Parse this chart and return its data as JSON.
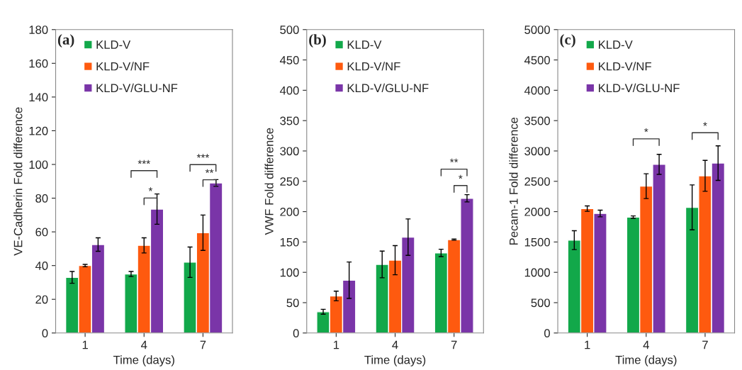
{
  "chart_data": [
    {
      "type": "bar",
      "categories": [
        "1",
        "4",
        "7"
      ],
      "xlabel": "Time (days)",
      "ylabel": "VE-Cadherin Fold difference",
      "ylim": [
        0,
        180
      ],
      "yticks": [
        0,
        20,
        40,
        60,
        80,
        100,
        120,
        140,
        160,
        180
      ],
      "grid": false,
      "legend": "top left",
      "series": [
        {
          "name": "KLD-V",
          "color": "#12a84a",
          "values": [
            33,
            35,
            42
          ],
          "errors": [
            3.5,
            1.5,
            9
          ]
        },
        {
          "name": "KLD-V/NF",
          "color": "#fe5a0f",
          "values": [
            40,
            52,
            59.5
          ],
          "errors": [
            0.7,
            4.5,
            10.5
          ]
        },
        {
          "name": "KLD-V/GLU-NF",
          "color": "#7a35a8",
          "values": [
            52.5,
            73.5,
            89
          ],
          "errors": [
            4,
            9,
            2
          ]
        }
      ],
      "annotations": [
        "(a)",
        "***",
        "*",
        "***",
        "**"
      ]
    },
    {
      "type": "bar",
      "categories": [
        "1",
        "4",
        "7"
      ],
      "xlabel": "Time (days)",
      "ylabel": "VWF Fold difference",
      "ylim": [
        0,
        500
      ],
      "yticks": [
        0,
        50,
        100,
        150,
        200,
        250,
        300,
        350,
        400,
        450,
        500
      ],
      "grid": false,
      "legend": "top left",
      "series": [
        {
          "name": "KLD-V",
          "color": "#12a84a",
          "values": [
            35,
            113,
            132
          ],
          "errors": [
            4,
            22,
            6
          ]
        },
        {
          "name": "KLD-V/NF",
          "color": "#fe5a0f",
          "values": [
            61,
            120,
            154
          ],
          "errors": [
            8,
            24,
            1
          ]
        },
        {
          "name": "KLD-V/GLU-NF",
          "color": "#7a35a8",
          "values": [
            87,
            158,
            222
          ],
          "errors": [
            30,
            30,
            6
          ]
        }
      ],
      "annotations": [
        "(b)",
        "**",
        "*"
      ]
    },
    {
      "type": "bar",
      "categories": [
        "1",
        "4",
        "7"
      ],
      "xlabel": "Time (days)",
      "ylabel": "Pecam-1 Fold difference",
      "ylim": [
        0,
        5000
      ],
      "yticks": [
        0,
        500,
        1000,
        1500,
        2000,
        2500,
        3000,
        3500,
        4000,
        4500,
        5000
      ],
      "grid": false,
      "legend": "top left",
      "series": [
        {
          "name": "KLD-V",
          "color": "#12a84a",
          "values": [
            1530,
            1910,
            2070
          ],
          "errors": [
            155,
            20,
            370
          ]
        },
        {
          "name": "KLD-V/NF",
          "color": "#fe5a0f",
          "values": [
            2050,
            2420,
            2590
          ],
          "errors": [
            45,
            205,
            255
          ]
        },
        {
          "name": "KLD-V/GLU-NF",
          "color": "#7a35a8",
          "values": [
            1970,
            2780,
            2800
          ],
          "errors": [
            55,
            165,
            285
          ]
        }
      ],
      "annotations": [
        "(c)",
        "*",
        "*"
      ]
    }
  ]
}
